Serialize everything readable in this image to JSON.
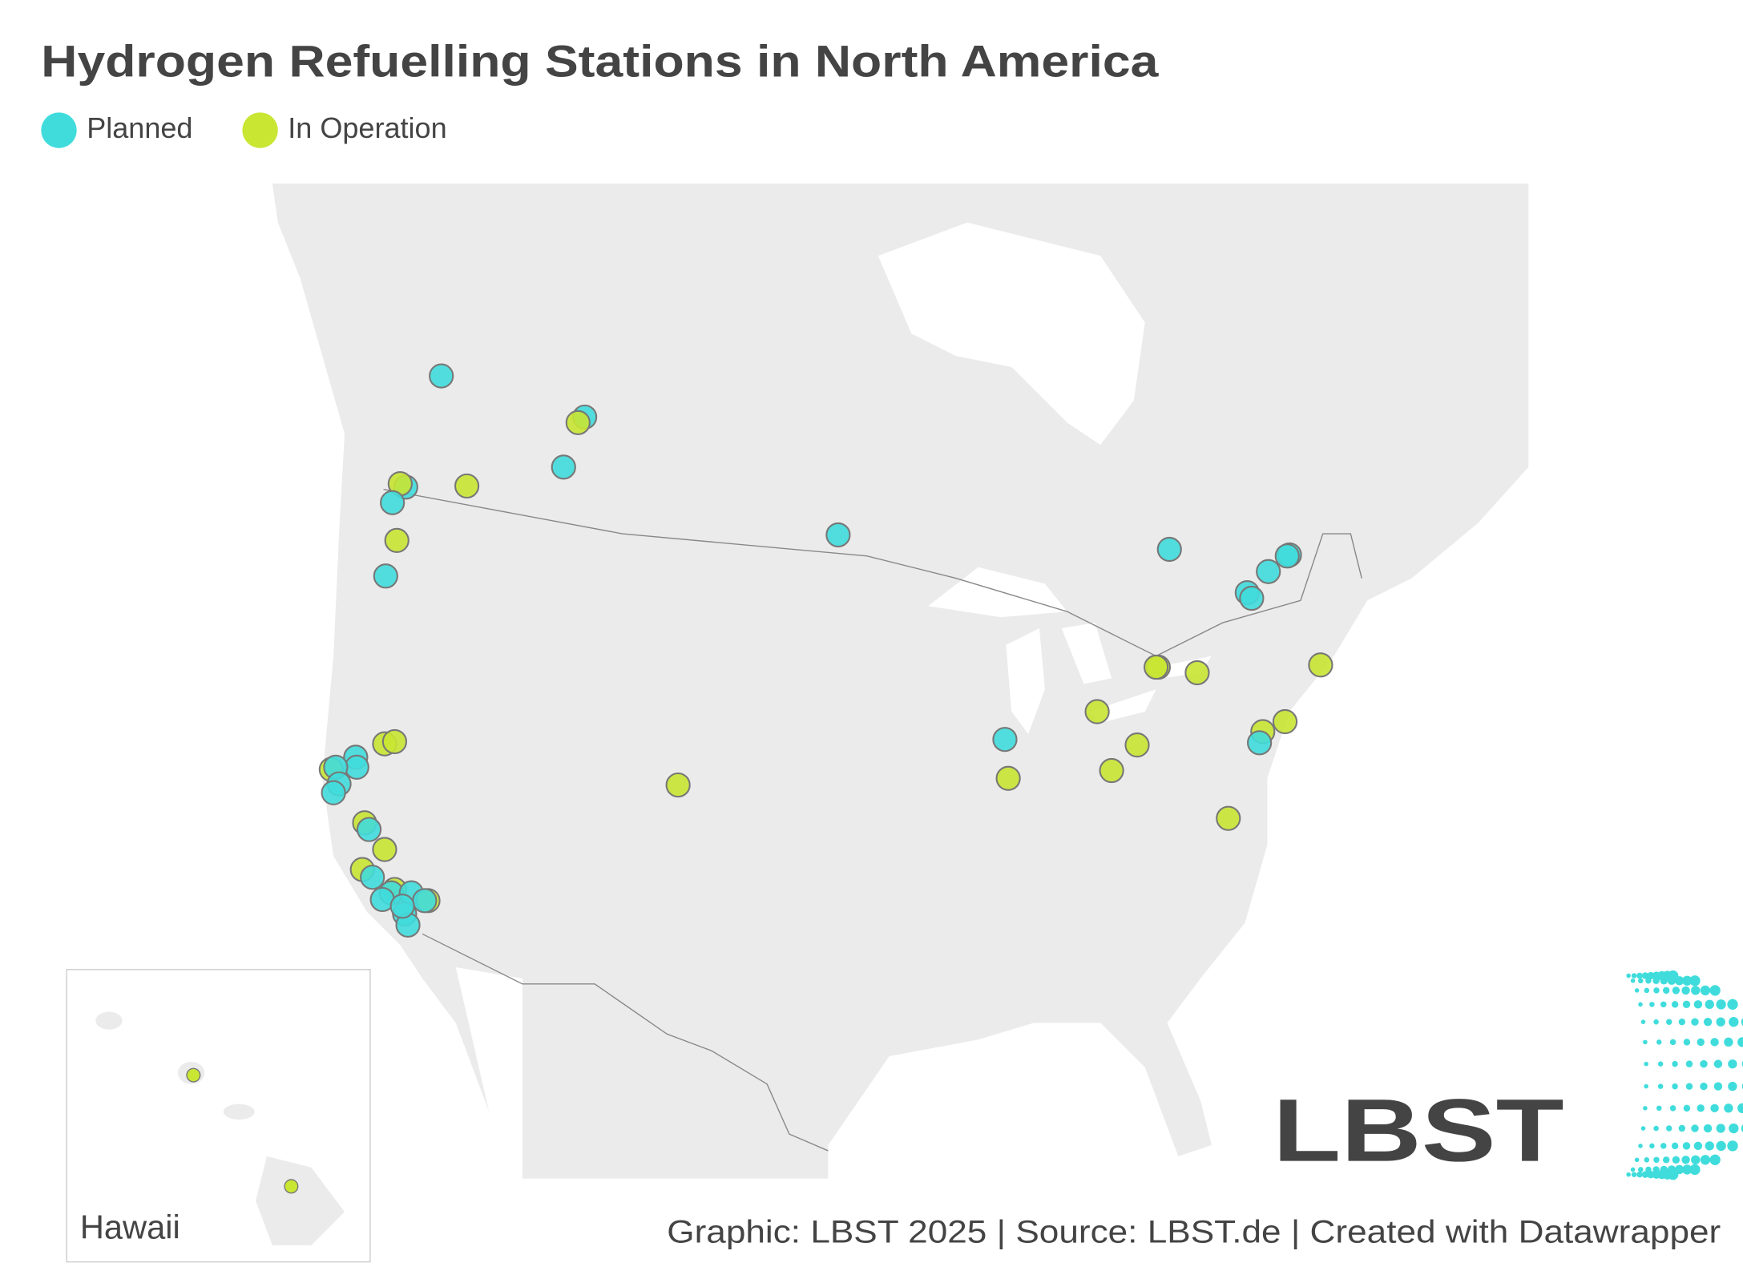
{
  "header": {
    "title": "Hydrogen Refuelling Stations in North America"
  },
  "legend": [
    {
      "name": "Planned",
      "color": "#40dcdc"
    },
    {
      "name": "In Operation",
      "color": "#c8e632"
    }
  ],
  "inset": {
    "label": "Hawaii"
  },
  "logo": {
    "text": "LBST"
  },
  "footer": {
    "text": "Graphic: LBST 2025 | Source: LBST.de | Created with Datawrapper"
  }
}
